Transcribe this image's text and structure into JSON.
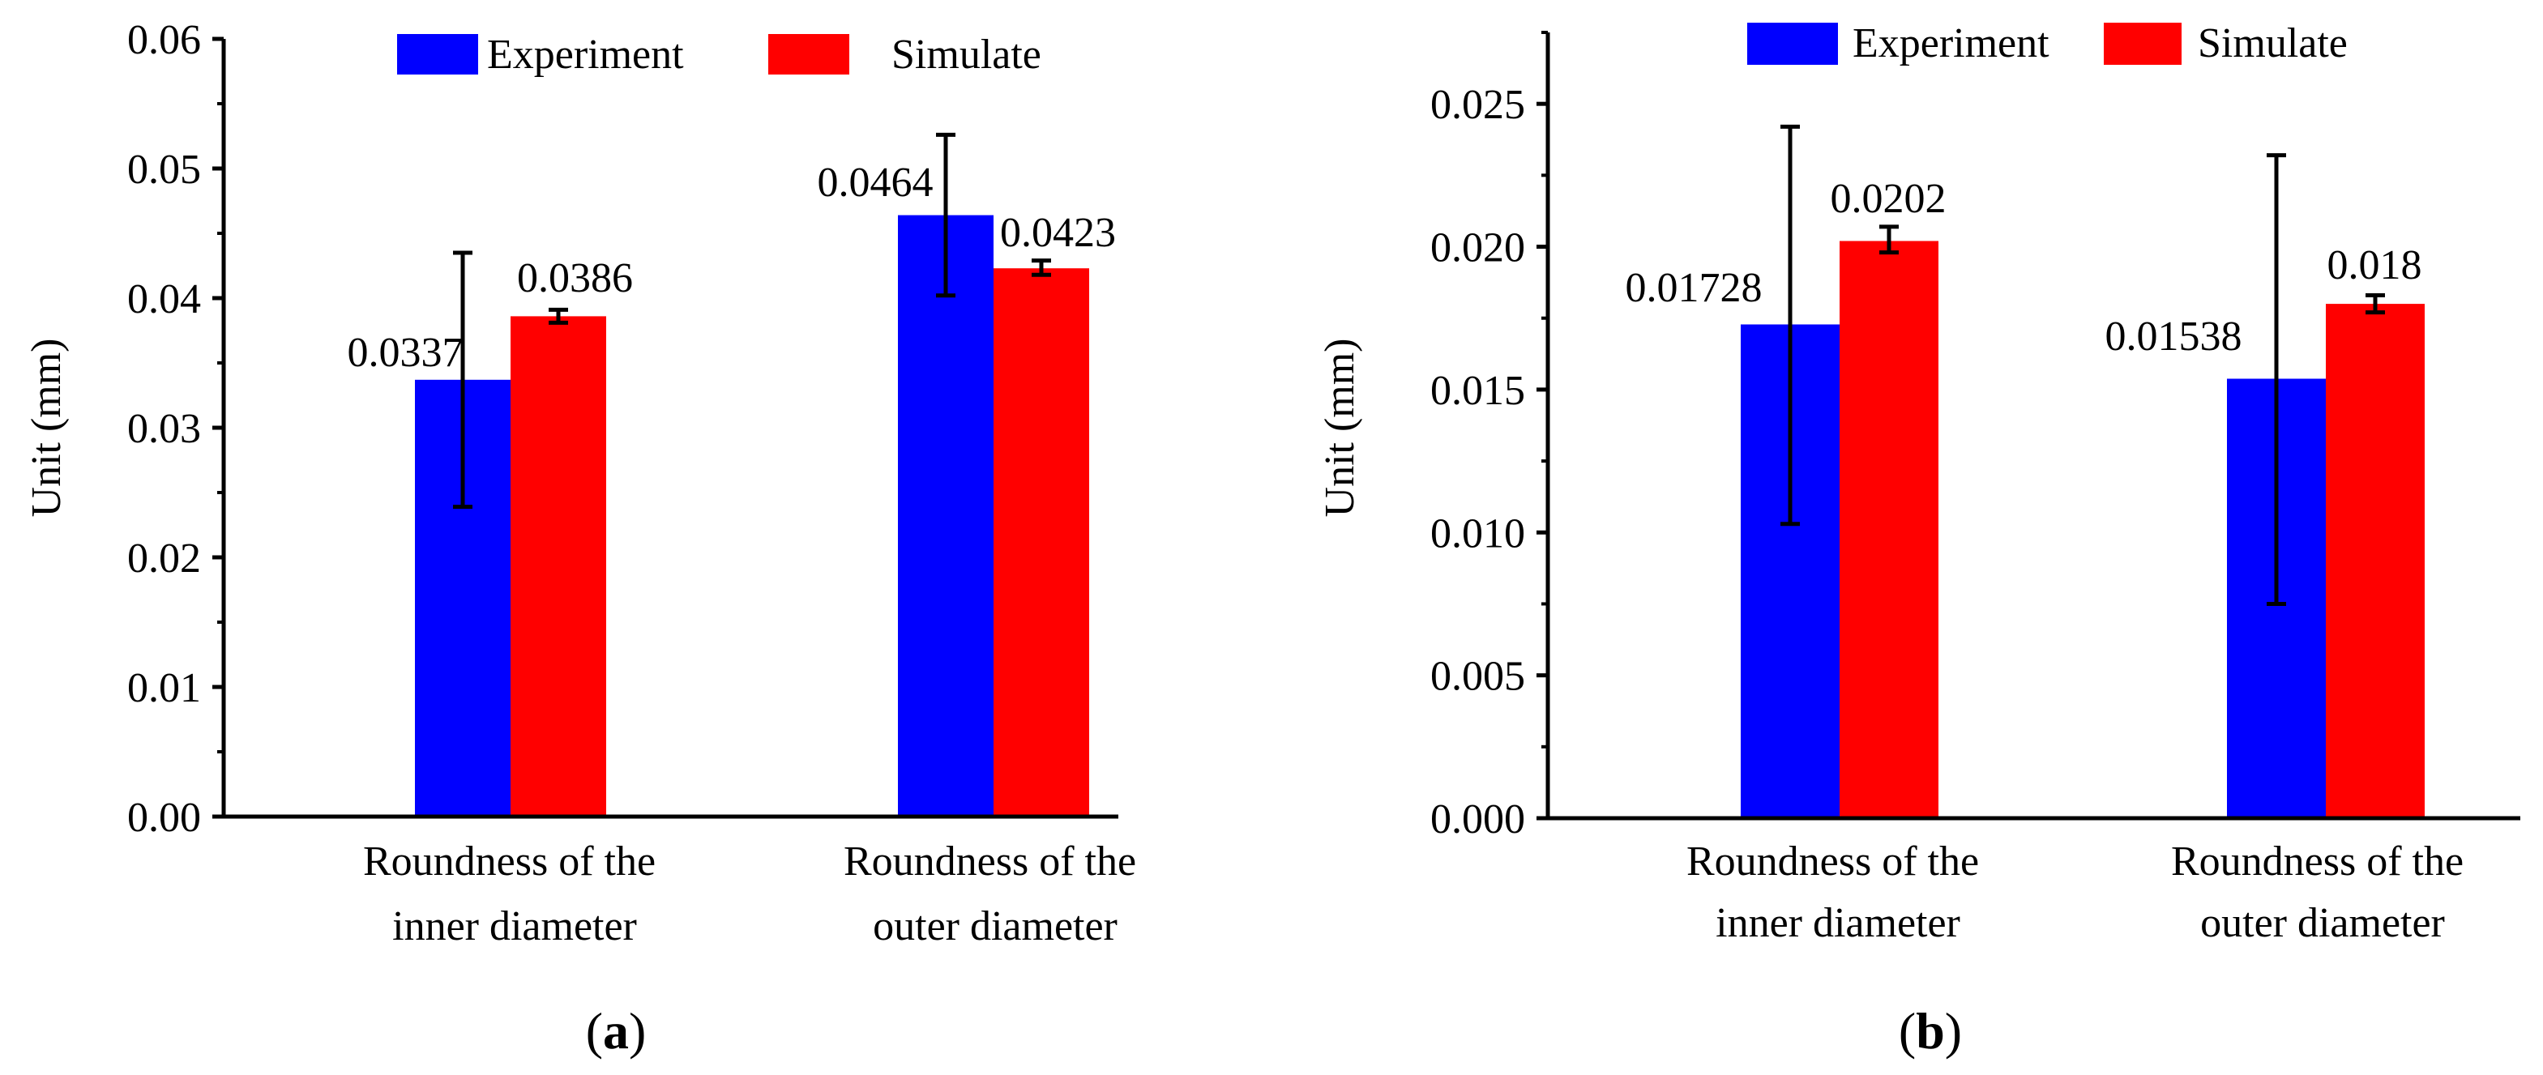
{
  "chart_data": [
    {
      "type": "bar",
      "panel_label": "a",
      "ylabel": "Unit (mm)",
      "categories": [
        [
          "Roundness of the",
          "inner diameter"
        ],
        [
          "Roundness of the",
          "outer diameter"
        ]
      ],
      "ylim": [
        0,
        0.06
      ],
      "yticks": [
        0.0,
        0.01,
        0.02,
        0.03,
        0.04,
        0.05,
        0.06
      ],
      "ytick_labels": [
        "0.00",
        "0.01",
        "0.02",
        "0.03",
        "0.04",
        "0.05",
        "0.06"
      ],
      "minor_ticks": true,
      "series": [
        {
          "name": "Experiment",
          "color": "#0000FF",
          "values": [
            0.0337,
            0.0464
          ],
          "value_labels": [
            "0.0337",
            "0.0464"
          ],
          "err_low": [
            0.0239,
            0.0402
          ],
          "err_high": [
            0.0435,
            0.0526
          ]
        },
        {
          "name": "Simulate",
          "color": "#FF0000",
          "values": [
            0.0386,
            0.0423
          ],
          "value_labels": [
            "0.0386",
            "0.0423"
          ],
          "err_low": [
            0.0381,
            0.0418
          ],
          "err_high": [
            0.0391,
            0.0429
          ]
        }
      ],
      "legend": "top-center",
      "grid": false
    },
    {
      "type": "bar",
      "panel_label": "b",
      "ylabel": "Unit (mm)",
      "categories": [
        [
          "Roundness of the",
          "inner diameter"
        ],
        [
          "Roundness of the",
          "outer diameter"
        ]
      ],
      "ylim": [
        0,
        0.0275
      ],
      "yticks": [
        0.0,
        0.005,
        0.01,
        0.015,
        0.02,
        0.025
      ],
      "ytick_labels": [
        "0.000",
        "0.005",
        "0.010",
        "0.015",
        "0.020",
        "0.025"
      ],
      "minor_ticks": true,
      "series": [
        {
          "name": "Experiment",
          "color": "#0000FF",
          "values": [
            0.01728,
            0.01538
          ],
          "value_labels": [
            "0.01728",
            "0.01538"
          ],
          "err_low": [
            0.0103,
            0.0075
          ],
          "err_high": [
            0.0242,
            0.0232
          ]
        },
        {
          "name": "Simulate",
          "color": "#FF0000",
          "values": [
            0.0202,
            0.018
          ],
          "value_labels": [
            "0.0202",
            "0.018"
          ],
          "err_low": [
            0.0198,
            0.0177
          ],
          "err_high": [
            0.0207,
            0.0183
          ]
        }
      ],
      "legend": "top-center",
      "grid": false
    }
  ]
}
